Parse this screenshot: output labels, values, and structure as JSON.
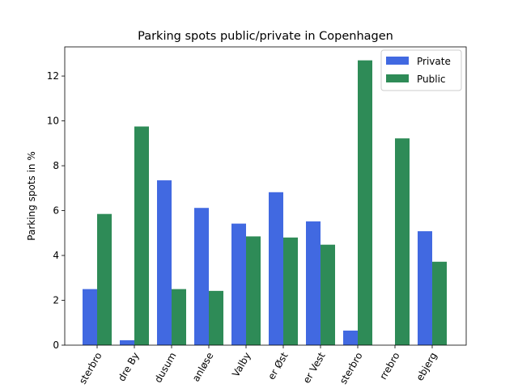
{
  "chart_data": {
    "type": "bar",
    "title": "Parking spots public/private in Copenhagen",
    "xlabel": "",
    "ylabel": "Parking spots in %",
    "ylim": [
      0,
      13.3
    ],
    "yticks": [
      0,
      2,
      4,
      6,
      8,
      10,
      12
    ],
    "categories": [
      "Østerbro",
      "Indre By",
      "Brønshøj-Husum",
      "Vanløse",
      "Valby",
      "Amager Øst",
      "Amager Vest",
      "Vesterbro",
      "Nørrebro",
      "Bispebjerg"
    ],
    "category_labels_visible": [
      "sterbro",
      "dre By",
      "dusum",
      "anløse",
      "Valby",
      "er Øst",
      "er Vest",
      "sterbro",
      "rrebro",
      "ebjerg"
    ],
    "series": [
      {
        "name": "Private",
        "color": "#4169e1",
        "values": [
          2.5,
          0.22,
          7.35,
          6.12,
          5.42,
          6.82,
          5.52,
          0.65,
          0.0,
          5.08
        ]
      },
      {
        "name": "Public",
        "color": "#2e8b57",
        "values": [
          5.85,
          9.75,
          2.5,
          2.42,
          4.85,
          4.8,
          4.48,
          12.7,
          9.22,
          3.72
        ]
      }
    ],
    "legend": "top-right",
    "grid": false
  }
}
